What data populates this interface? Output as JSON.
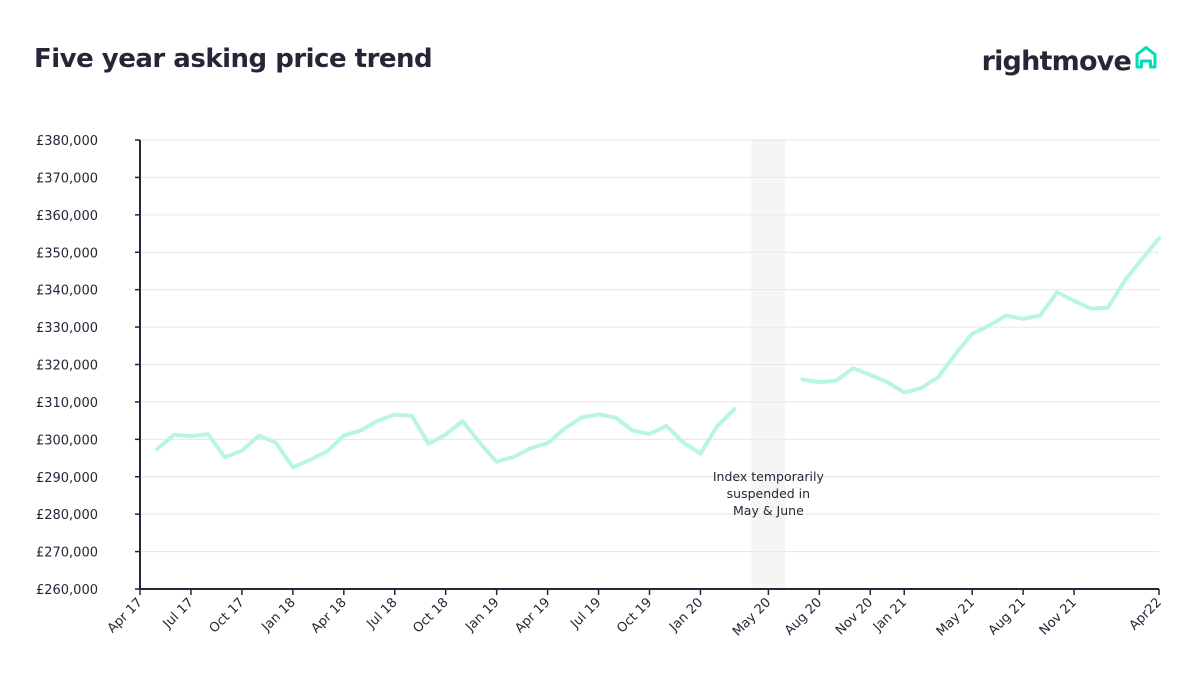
{
  "header": {
    "title": "Five year asking price trend"
  },
  "brand": {
    "name": "rightmove",
    "icon": "house-outline-icon",
    "icon_color": "#00deb6"
  },
  "colors": {
    "line": "#b8f5e6",
    "axis": "#262637",
    "grid": "#e6e6ec",
    "gap": "#f6f5f6",
    "text": "#262637"
  },
  "chart_data": {
    "type": "line",
    "title": "Five year asking price trend",
    "xlabel": "",
    "ylabel": "",
    "ylim": [
      260000,
      380000
    ],
    "y_ticks": [
      260000,
      270000,
      280000,
      290000,
      300000,
      310000,
      320000,
      330000,
      340000,
      350000,
      360000,
      370000,
      380000
    ],
    "y_tick_labels": [
      "£260,000",
      "£270,000",
      "£280,000",
      "£290,000",
      "£300,000",
      "£310,000",
      "£320,000",
      "£330,000",
      "£340,000",
      "£350,000",
      "£360,000",
      "£370,000",
      "£380,000"
    ],
    "x_tick_labels": [
      "Apr 17",
      "Jul 17",
      "Oct 17",
      "Jan 18",
      "Apr 18",
      "Jul 18",
      "Oct 18",
      "Jan 19",
      "Apr 19",
      "Jul 19",
      "Oct 19",
      "Jan 20",
      "May 20",
      "Aug 20",
      "Nov 20",
      "Jan 21",
      "May 21",
      "Aug 21",
      "Nov 21",
      "Apr22"
    ],
    "grid": "horizontal",
    "legend": "none",
    "gap": {
      "from": "Apr 20",
      "to": "Jun 20",
      "annotation": "Index temporarily suspended in May & June"
    },
    "series": [
      {
        "segments": [
          {
            "x": [
              "May 17",
              "Jun 17",
              "Jul 17",
              "Aug 17",
              "Sep 17",
              "Oct 17",
              "Nov 17",
              "Dec 17",
              "Jan 18",
              "Feb 18",
              "Mar 18",
              "Apr 18",
              "May 18",
              "Jun 18",
              "Jul 18",
              "Aug 18",
              "Sep 18",
              "Oct 18",
              "Nov 18",
              "Dec 18",
              "Jan 19",
              "Feb 19",
              "Mar 19",
              "Apr 19",
              "May 19",
              "Jun 19",
              "Jul 19",
              "Aug 19",
              "Sep 19",
              "Oct 19",
              "Nov 19",
              "Dec 19",
              "Jan 20",
              "Feb 20",
              "Mar 20"
            ],
            "y": [
              297400,
              301200,
              300800,
              301400,
              295200,
              297000,
              301000,
              299100,
              292500,
              294500,
              296700,
              301000,
              302400,
              305000,
              306600,
              306300,
              298800,
              301300,
              304900,
              299100,
              294000,
              295300,
              297600,
              299000,
              302900,
              305800,
              306700,
              305800,
              302400,
              301400,
              303600,
              299100,
              296200,
              303600,
              308100
            ]
          },
          {
            "x": [
              "Jul 20",
              "Aug 20",
              "Sep 20",
              "Oct 20",
              "Nov 20",
              "Dec 20",
              "Jan 21",
              "Feb 21",
              "Mar 21",
              "Apr 21",
              "May 21",
              "Jun 21",
              "Jul 21",
              "Aug 21",
              "Sep 21",
              "Oct 21",
              "Nov 21",
              "Dec 21",
              "Jan 22",
              "Feb 22",
              "Mar 22",
              "Apr 22"
            ],
            "y": [
              316000,
              315300,
              315700,
              319000,
              317200,
              315300,
              312500,
              313700,
              316600,
              322700,
              328200,
              330400,
              333100,
              332200,
              333100,
              339300,
              337000,
              334900,
              335200,
              342500,
              348200,
              353700
            ]
          }
        ]
      }
    ]
  }
}
